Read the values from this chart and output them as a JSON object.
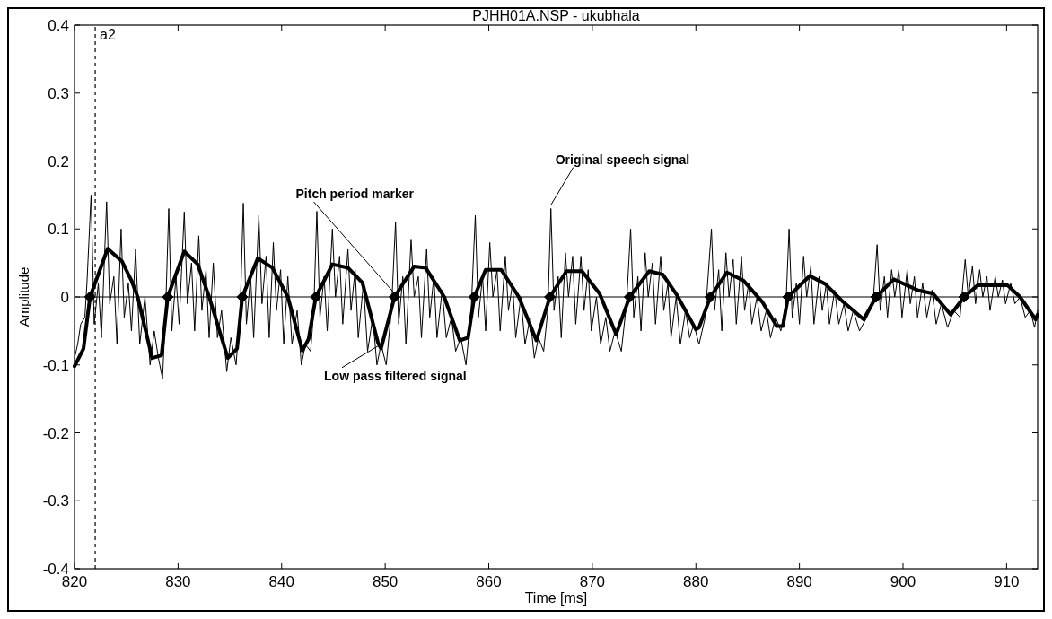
{
  "chart_data": {
    "type": "line",
    "title": "PJHH01A.NSP - ukubhala",
    "xlabel": "Time [ms]",
    "ylabel": "Amplitude",
    "xlim": [
      820,
      913
    ],
    "xticks": [
      820,
      830,
      840,
      850,
      860,
      870,
      880,
      890,
      900,
      910
    ],
    "ylim": [
      -0.4,
      0.4
    ],
    "yticks": [
      -0.4,
      -0.3,
      -0.2,
      -0.1,
      0,
      0.1,
      0.2,
      0.3,
      0.4
    ],
    "grid": false,
    "legend": false,
    "ref_lines": [
      {
        "axis": "x",
        "value": 822,
        "label": "a2",
        "line_style": "dashed",
        "color": "#000000"
      },
      {
        "axis": "y",
        "value": 0,
        "label": null,
        "line_style": "solid",
        "color": "#000000"
      }
    ],
    "series": [
      {
        "name": "Original speech signal",
        "type": "line",
        "color": "#000000",
        "line_style": "solid",
        "marker": "none",
        "x": [
          820.0,
          820.3,
          820.6,
          821.0,
          821.2,
          821.6,
          821.9,
          822.3,
          822.6,
          823.1,
          823.4,
          823.8,
          824.1,
          824.5,
          824.8,
          825.2,
          825.5,
          825.9,
          826.3,
          826.8,
          827.3,
          827.7,
          828.1,
          828.5,
          828.8,
          829.1,
          829.4,
          829.8,
          830.1,
          830.6,
          830.9,
          831.3,
          831.6,
          832.0,
          832.3,
          832.7,
          833.0,
          833.4,
          833.8,
          834.2,
          834.7,
          835.1,
          835.6,
          836.0,
          836.3,
          836.6,
          837.0,
          837.3,
          837.8,
          838.1,
          838.5,
          838.8,
          839.2,
          839.5,
          839.9,
          840.2,
          840.6,
          841.0,
          841.5,
          841.9,
          842.3,
          842.8,
          843.1,
          843.4,
          843.7,
          844.1,
          844.4,
          844.9,
          845.2,
          845.6,
          845.9,
          846.4,
          846.7,
          847.1,
          847.4,
          847.9,
          848.3,
          848.8,
          849.2,
          849.6,
          850.1,
          850.6,
          851.0,
          851.3,
          851.7,
          852.0,
          852.5,
          852.8,
          853.2,
          853.5,
          854.0,
          854.3,
          854.7,
          855.0,
          855.5,
          855.9,
          856.4,
          856.8,
          857.3,
          857.8,
          858.3,
          858.7,
          859.0,
          859.4,
          859.7,
          860.1,
          860.4,
          860.8,
          861.1,
          861.6,
          861.9,
          862.3,
          862.6,
          863.1,
          863.5,
          864.0,
          864.4,
          864.8,
          865.3,
          865.7,
          866.0,
          866.3,
          866.7,
          867.0,
          867.4,
          867.7,
          868.1,
          868.4,
          868.9,
          869.2,
          869.6,
          869.9,
          870.4,
          870.8,
          871.3,
          871.7,
          872.2,
          872.8,
          873.3,
          873.7,
          874.0,
          874.4,
          874.7,
          875.1,
          875.4,
          875.8,
          876.1,
          876.6,
          876.9,
          877.3,
          877.6,
          878.1,
          878.5,
          879.0,
          879.4,
          879.8,
          880.3,
          880.9,
          881.5,
          881.8,
          882.2,
          882.5,
          882.9,
          883.2,
          883.6,
          883.9,
          884.4,
          884.7,
          885.1,
          885.4,
          885.9,
          886.3,
          886.8,
          887.2,
          887.7,
          888.2,
          888.7,
          889.0,
          889.3,
          889.7,
          890.0,
          890.4,
          890.7,
          891.1,
          891.4,
          891.9,
          892.2,
          892.6,
          892.9,
          893.4,
          893.8,
          894.3,
          894.7,
          895.2,
          895.8,
          896.5,
          897.1,
          897.5,
          897.8,
          898.2,
          898.5,
          898.9,
          899.2,
          899.6,
          899.9,
          900.4,
          900.7,
          901.1,
          901.4,
          901.9,
          902.3,
          902.8,
          903.2,
          903.7,
          904.3,
          904.9,
          905.5,
          906.0,
          906.3,
          906.7,
          907.0,
          907.4,
          907.7,
          908.1,
          908.4,
          908.9,
          909.2,
          909.6,
          909.9,
          910.4,
          910.8,
          911.3,
          911.8,
          912.3,
          912.7,
          913.0
        ],
        "values": [
          -0.09,
          -0.07,
          -0.04,
          -0.03,
          0.02,
          0.15,
          -0.04,
          0.02,
          -0.06,
          0.14,
          -0.01,
          0.03,
          -0.07,
          0.1,
          -0.03,
          0.02,
          -0.05,
          0.07,
          -0.07,
          0.0,
          -0.1,
          -0.05,
          -0.09,
          -0.12,
          -0.02,
          0.13,
          -0.05,
          0.03,
          -0.04,
          0.125,
          -0.01,
          0.05,
          -0.05,
          0.09,
          -0.02,
          0.04,
          -0.06,
          0.05,
          -0.06,
          -0.02,
          -0.11,
          -0.06,
          -0.1,
          -0.02,
          0.138,
          -0.04,
          0.03,
          -0.06,
          0.12,
          -0.01,
          0.06,
          -0.06,
          0.08,
          -0.02,
          0.04,
          -0.07,
          0.03,
          -0.07,
          -0.02,
          -0.1,
          -0.07,
          -0.08,
          -0.02,
          0.126,
          -0.03,
          0.03,
          -0.05,
          0.1,
          0.0,
          0.06,
          -0.04,
          0.07,
          -0.02,
          0.04,
          -0.06,
          0.02,
          -0.08,
          -0.03,
          -0.1,
          -0.07,
          -0.1,
          -0.02,
          0.11,
          -0.04,
          0.03,
          -0.07,
          0.085,
          0.0,
          0.03,
          -0.06,
          0.07,
          -0.03,
          0.03,
          -0.06,
          0.01,
          -0.06,
          -0.03,
          -0.08,
          -0.06,
          -0.1,
          -0.02,
          0.12,
          -0.03,
          0.03,
          -0.05,
          0.08,
          0.0,
          0.04,
          -0.05,
          0.06,
          -0.02,
          0.02,
          -0.06,
          0.0,
          -0.07,
          -0.03,
          -0.09,
          -0.06,
          -0.08,
          -0.02,
          0.13,
          -0.02,
          0.03,
          -0.06,
          0.065,
          0.0,
          0.06,
          -0.04,
          0.06,
          -0.02,
          0.04,
          -0.05,
          0.0,
          -0.07,
          -0.03,
          -0.08,
          -0.05,
          -0.08,
          -0.01,
          0.1,
          -0.03,
          0.03,
          -0.05,
          0.065,
          0.0,
          0.05,
          -0.04,
          0.06,
          -0.02,
          0.02,
          -0.06,
          0.0,
          -0.07,
          -0.02,
          -0.06,
          -0.04,
          -0.07,
          -0.03,
          0.1,
          -0.02,
          0.04,
          -0.05,
          0.065,
          0.0,
          0.055,
          -0.04,
          0.06,
          -0.02,
          0.02,
          -0.04,
          0.0,
          -0.05,
          -0.02,
          -0.06,
          -0.03,
          -0.05,
          -0.01,
          0.1,
          -0.03,
          0.02,
          -0.04,
          0.06,
          0.0,
          0.045,
          -0.04,
          0.03,
          -0.02,
          0.02,
          -0.04,
          0.01,
          -0.04,
          -0.01,
          -0.05,
          -0.02,
          -0.05,
          -0.03,
          -0.01,
          0.077,
          -0.02,
          0.03,
          -0.03,
          0.04,
          0.0,
          0.04,
          -0.03,
          0.04,
          -0.01,
          0.03,
          -0.03,
          0.02,
          -0.03,
          0.01,
          -0.04,
          -0.01,
          -0.045,
          -0.02,
          -0.03,
          0.055,
          0.0,
          0.045,
          -0.01,
          0.04,
          0.0,
          0.03,
          -0.02,
          0.03,
          0.0,
          0.025,
          -0.01,
          0.02,
          -0.01,
          0.0,
          -0.03,
          -0.02,
          -0.045,
          -0.02
        ]
      },
      {
        "name": "Low pass filtered signal",
        "type": "line",
        "color": "#000000",
        "line_style": "solid",
        "marker": "none",
        "x": [
          820.0,
          820.87,
          821.5,
          823.2,
          824.6,
          825.5,
          826.1,
          827.5,
          828.4,
          829.0,
          830.6,
          831.9,
          833.0,
          834.8,
          835.7,
          836.2,
          837.7,
          839.1,
          840.6,
          842.0,
          842.6,
          843.3,
          844.9,
          846.4,
          847.8,
          849.3,
          849.6,
          850.9,
          852.8,
          853.9,
          855.7,
          857.2,
          858.0,
          858.6,
          859.7,
          861.2,
          862.9,
          864.6,
          865.9,
          867.5,
          869.0,
          870.7,
          872.3,
          873.6,
          875.5,
          876.8,
          878.2,
          880.0,
          880.3,
          881.4,
          883.0,
          884.6,
          886.4,
          887.8,
          888.4,
          888.9,
          891.0,
          892.5,
          894.2,
          896.2,
          897.4,
          899.1,
          901.4,
          902.9,
          904.6,
          905.9,
          907.2,
          910.1,
          911.3,
          912.8,
          913.0
        ],
        "values": [
          -0.102,
          -0.076,
          0,
          0.071,
          0.052,
          0.024,
          0,
          -0.09,
          -0.086,
          0,
          0.067,
          0.048,
          0,
          -0.09,
          -0.076,
          0,
          0.057,
          0.043,
          0,
          -0.079,
          -0.062,
          0,
          0.048,
          0.043,
          0.021,
          -0.067,
          -0.076,
          0,
          0.045,
          0.043,
          0,
          -0.064,
          -0.06,
          0,
          0.04,
          0.04,
          0,
          -0.064,
          0,
          0.038,
          0.038,
          0.005,
          -0.055,
          0,
          0.038,
          0.033,
          0.002,
          -0.048,
          -0.045,
          0,
          0.036,
          0.024,
          -0.007,
          -0.043,
          -0.043,
          0,
          0.031,
          0.019,
          -0.007,
          -0.033,
          0,
          0.026,
          0.01,
          0.005,
          -0.026,
          0,
          0.017,
          0.017,
          0,
          -0.033,
          -0.026
        ]
      },
      {
        "name": "Pitch period marker",
        "type": "scatter",
        "color": "#000000",
        "marker": "diamond",
        "x": [
          821.5,
          829.0,
          836.2,
          843.3,
          850.9,
          858.6,
          865.9,
          873.6,
          881.4,
          888.9,
          897.4,
          905.9
        ],
        "values": [
          0,
          0,
          0,
          0,
          0,
          0,
          0,
          0,
          0,
          0,
          0,
          0
        ]
      }
    ]
  }
}
